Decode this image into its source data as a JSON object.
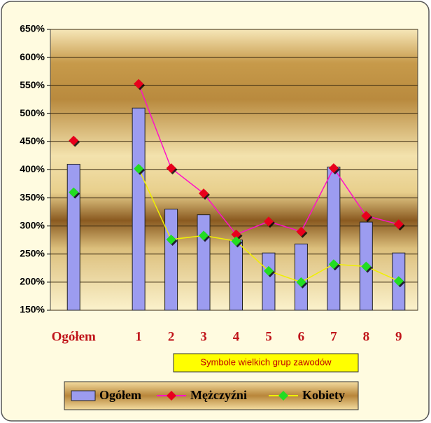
{
  "chart_data": {
    "type": "bar",
    "categories": [
      "Ogółem",
      null,
      "1",
      "2",
      "3",
      "4",
      "5",
      "6",
      "7",
      "8",
      "9"
    ],
    "series": [
      {
        "name": "Ogółem",
        "type": "bar",
        "color": "#9c9cf0",
        "values": [
          410,
          null,
          510,
          330,
          320,
          275,
          252,
          268,
          405,
          307,
          252
        ]
      },
      {
        "name": "Mężczyźni",
        "type": "line",
        "color": "#ff10c8",
        "marker_color": "#e8001c",
        "values": [
          452,
          null,
          553,
          403,
          358,
          285,
          308,
          290,
          403,
          318,
          303
        ]
      },
      {
        "name": "Kobiety",
        "type": "line",
        "color": "#f0f000",
        "marker_color": "#22dd22",
        "values": [
          360,
          null,
          402,
          276,
          283,
          273,
          220,
          200,
          232,
          228,
          202
        ]
      }
    ],
    "ylim": [
      150,
      650
    ],
    "yticks": [
      {
        "value": 150,
        "label": "150%"
      },
      {
        "value": 200,
        "label": "200%"
      },
      {
        "value": 250,
        "label": "250%"
      },
      {
        "value": 300,
        "label": "300%"
      },
      {
        "value": 350,
        "label": "350%"
      },
      {
        "value": 400,
        "label": "400%"
      },
      {
        "value": 450,
        "label": "450%"
      },
      {
        "value": 500,
        "label": "500%"
      },
      {
        "value": 550,
        "label": "550%"
      },
      {
        "value": 600,
        "label": "600%"
      },
      {
        "value": 650,
        "label": "650%"
      }
    ],
    "grid": true,
    "annotation": "Symbole wielkich grup zawodów",
    "legend": "bottom"
  }
}
